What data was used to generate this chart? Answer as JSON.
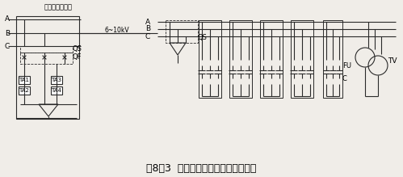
{
  "title": "图8－3  高压集中补偿电容器组接线图",
  "title_fontsize": 9,
  "bg_color": "#f0ede8",
  "line_color": "#2a2a2a",
  "label_A1": "A",
  "label_B1": "B",
  "label_C1": "C",
  "label_busbar": "变电所高压导线",
  "label_6_10kV": "6~10kV",
  "label_QS1": "QS",
  "label_QF": "QF",
  "label_TA1": "TA1",
  "label_TA2": "TA2",
  "label_TA3": "TA3",
  "label_TA4": "TA4",
  "label_QS2": "QS",
  "label_FU": "FU",
  "label_C": "C",
  "label_TV": "TV",
  "label_A2": "A",
  "label_B2": "B",
  "label_C2": "C"
}
